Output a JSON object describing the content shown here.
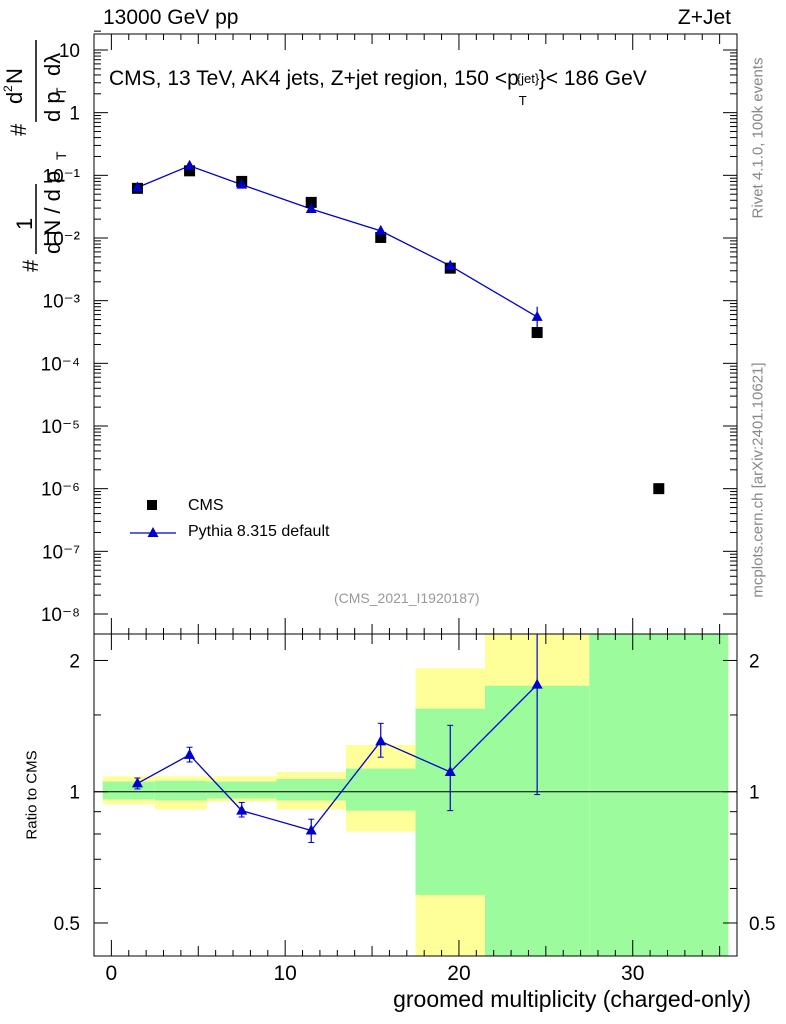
{
  "header": {
    "left": "13000 GeV pp",
    "right": "Z+Jet"
  },
  "side": {
    "rivet": "Rivet 4.1.0,  100k events",
    "mcplots": "mcplots.cern.ch [arXiv:2401.10621]"
  },
  "top_panel": {
    "title": "CMS, 13 TeV, AK4 jets, Z+jet region, 150 <p",
    "title_sub": "T",
    "title_sup": "{jet}",
    "title_end": "}< 186 GeV",
    "analysis_tag": "(CMS_2021_I1920187)",
    "ylabel_parts": [
      "#",
      "1",
      "d N / d p",
      "T",
      "#",
      "d",
      "2",
      "N",
      "d p",
      "T",
      "dλ"
    ]
  },
  "legend": {
    "data_label": "CMS",
    "mc_label": "Pythia 8.315 default"
  },
  "bottom_panel": {
    "ylabel": "Ratio to CMS"
  },
  "xlabel": "groomed multiplicity (charged-only)",
  "colors": {
    "mc": "#0000cc",
    "band_inner": "#9cfb9c",
    "band_outer": "#ffff99",
    "data": "#000000"
  },
  "chart_data": [
    {
      "type": "scatter",
      "panel": "main",
      "yscale": "log",
      "xlim": [
        -1,
        36
      ],
      "ylim": [
        1e-08,
        20
      ],
      "ytick_labels": [
        "10⁻⁸",
        "10⁻⁷",
        "10⁻⁶",
        "10⁻⁵",
        "10⁻⁴",
        "10⁻³",
        "10⁻²",
        "10⁻¹",
        "1",
        "10"
      ],
      "ytick_values": [
        1e-08,
        1e-07,
        1e-06,
        1e-05,
        0.0001,
        0.001,
        0.01,
        0.1,
        1,
        10
      ],
      "series": [
        {
          "name": "CMS",
          "x": [
            1.5,
            4.5,
            7.5,
            11.5,
            15.5,
            19.5,
            24.5,
            31.5
          ],
          "y": [
            0.062,
            0.118,
            0.08,
            0.037,
            0.0102,
            0.0033,
            0.00031,
            1e-06
          ]
        },
        {
          "name": "Pythia 8.315 default",
          "x": [
            1.5,
            4.5,
            7.5,
            11.5,
            15.5,
            19.5,
            24.5
          ],
          "y": [
            0.064,
            0.142,
            0.071,
            0.029,
            0.013,
            0.0036,
            0.00055
          ],
          "yerr_low": [
            0.061,
            0.134,
            0.067,
            0.027,
            0.0122,
            0.0031,
            0.00031
          ],
          "yerr_high": [
            0.067,
            0.15,
            0.075,
            0.031,
            0.0138,
            0.0042,
            0.0008
          ]
        }
      ]
    },
    {
      "type": "line",
      "panel": "ratio",
      "xlim": [
        -1,
        36
      ],
      "ylim": [
        0.42,
        2.3
      ],
      "yscale": "log",
      "ytick_labels": [
        "0.5",
        "1",
        "2"
      ],
      "ytick_values": [
        0.5,
        1,
        2
      ],
      "xtick_labels": [
        "0",
        "10",
        "20",
        "30"
      ],
      "xtick_values": [
        0,
        10,
        20,
        30
      ],
      "bands": [
        {
          "x0": -0.5,
          "x1": 2.5,
          "outer": [
            0.935,
            1.085
          ],
          "inner": [
            0.96,
            1.055
          ]
        },
        {
          "x0": 2.5,
          "x1": 5.5,
          "outer": [
            0.91,
            1.085
          ],
          "inner": [
            0.955,
            1.06
          ]
        },
        {
          "x0": 5.5,
          "x1": 9.5,
          "outer": [
            0.95,
            1.085
          ],
          "inner": [
            0.965,
            1.055
          ]
        },
        {
          "x0": 9.5,
          "x1": 13.5,
          "outer": [
            0.91,
            1.11
          ],
          "inner": [
            0.955,
            1.07
          ]
        },
        {
          "x0": 13.5,
          "x1": 17.5,
          "outer": [
            0.81,
            1.28
          ],
          "inner": [
            0.905,
            1.13
          ]
        },
        {
          "x0": 17.5,
          "x1": 21.5,
          "outer": [
            0.42,
            1.92
          ],
          "inner": [
            0.58,
            1.55
          ]
        },
        {
          "x0": 21.5,
          "x1": 27.5,
          "outer": [
            0.42,
            2.3
          ],
          "inner": [
            0.42,
            1.75
          ]
        },
        {
          "x0": 27.5,
          "x1": 35.5,
          "outer": [
            0.42,
            2.3
          ],
          "inner": [
            0.42,
            2.3
          ]
        }
      ],
      "series": [
        {
          "name": "Pythia 8.315 default",
          "x": [
            1.5,
            4.5,
            7.5,
            11.5,
            15.5,
            19.5,
            24.5
          ],
          "y": [
            1.045,
            1.215,
            0.905,
            0.815,
            1.305,
            1.11,
            1.76
          ],
          "yerr_low": [
            1.015,
            1.17,
            0.875,
            0.765,
            1.2,
            0.905,
            0.985
          ],
          "yerr_high": [
            1.075,
            1.265,
            0.945,
            0.865,
            1.435,
            1.42,
            2.3
          ]
        }
      ]
    }
  ]
}
